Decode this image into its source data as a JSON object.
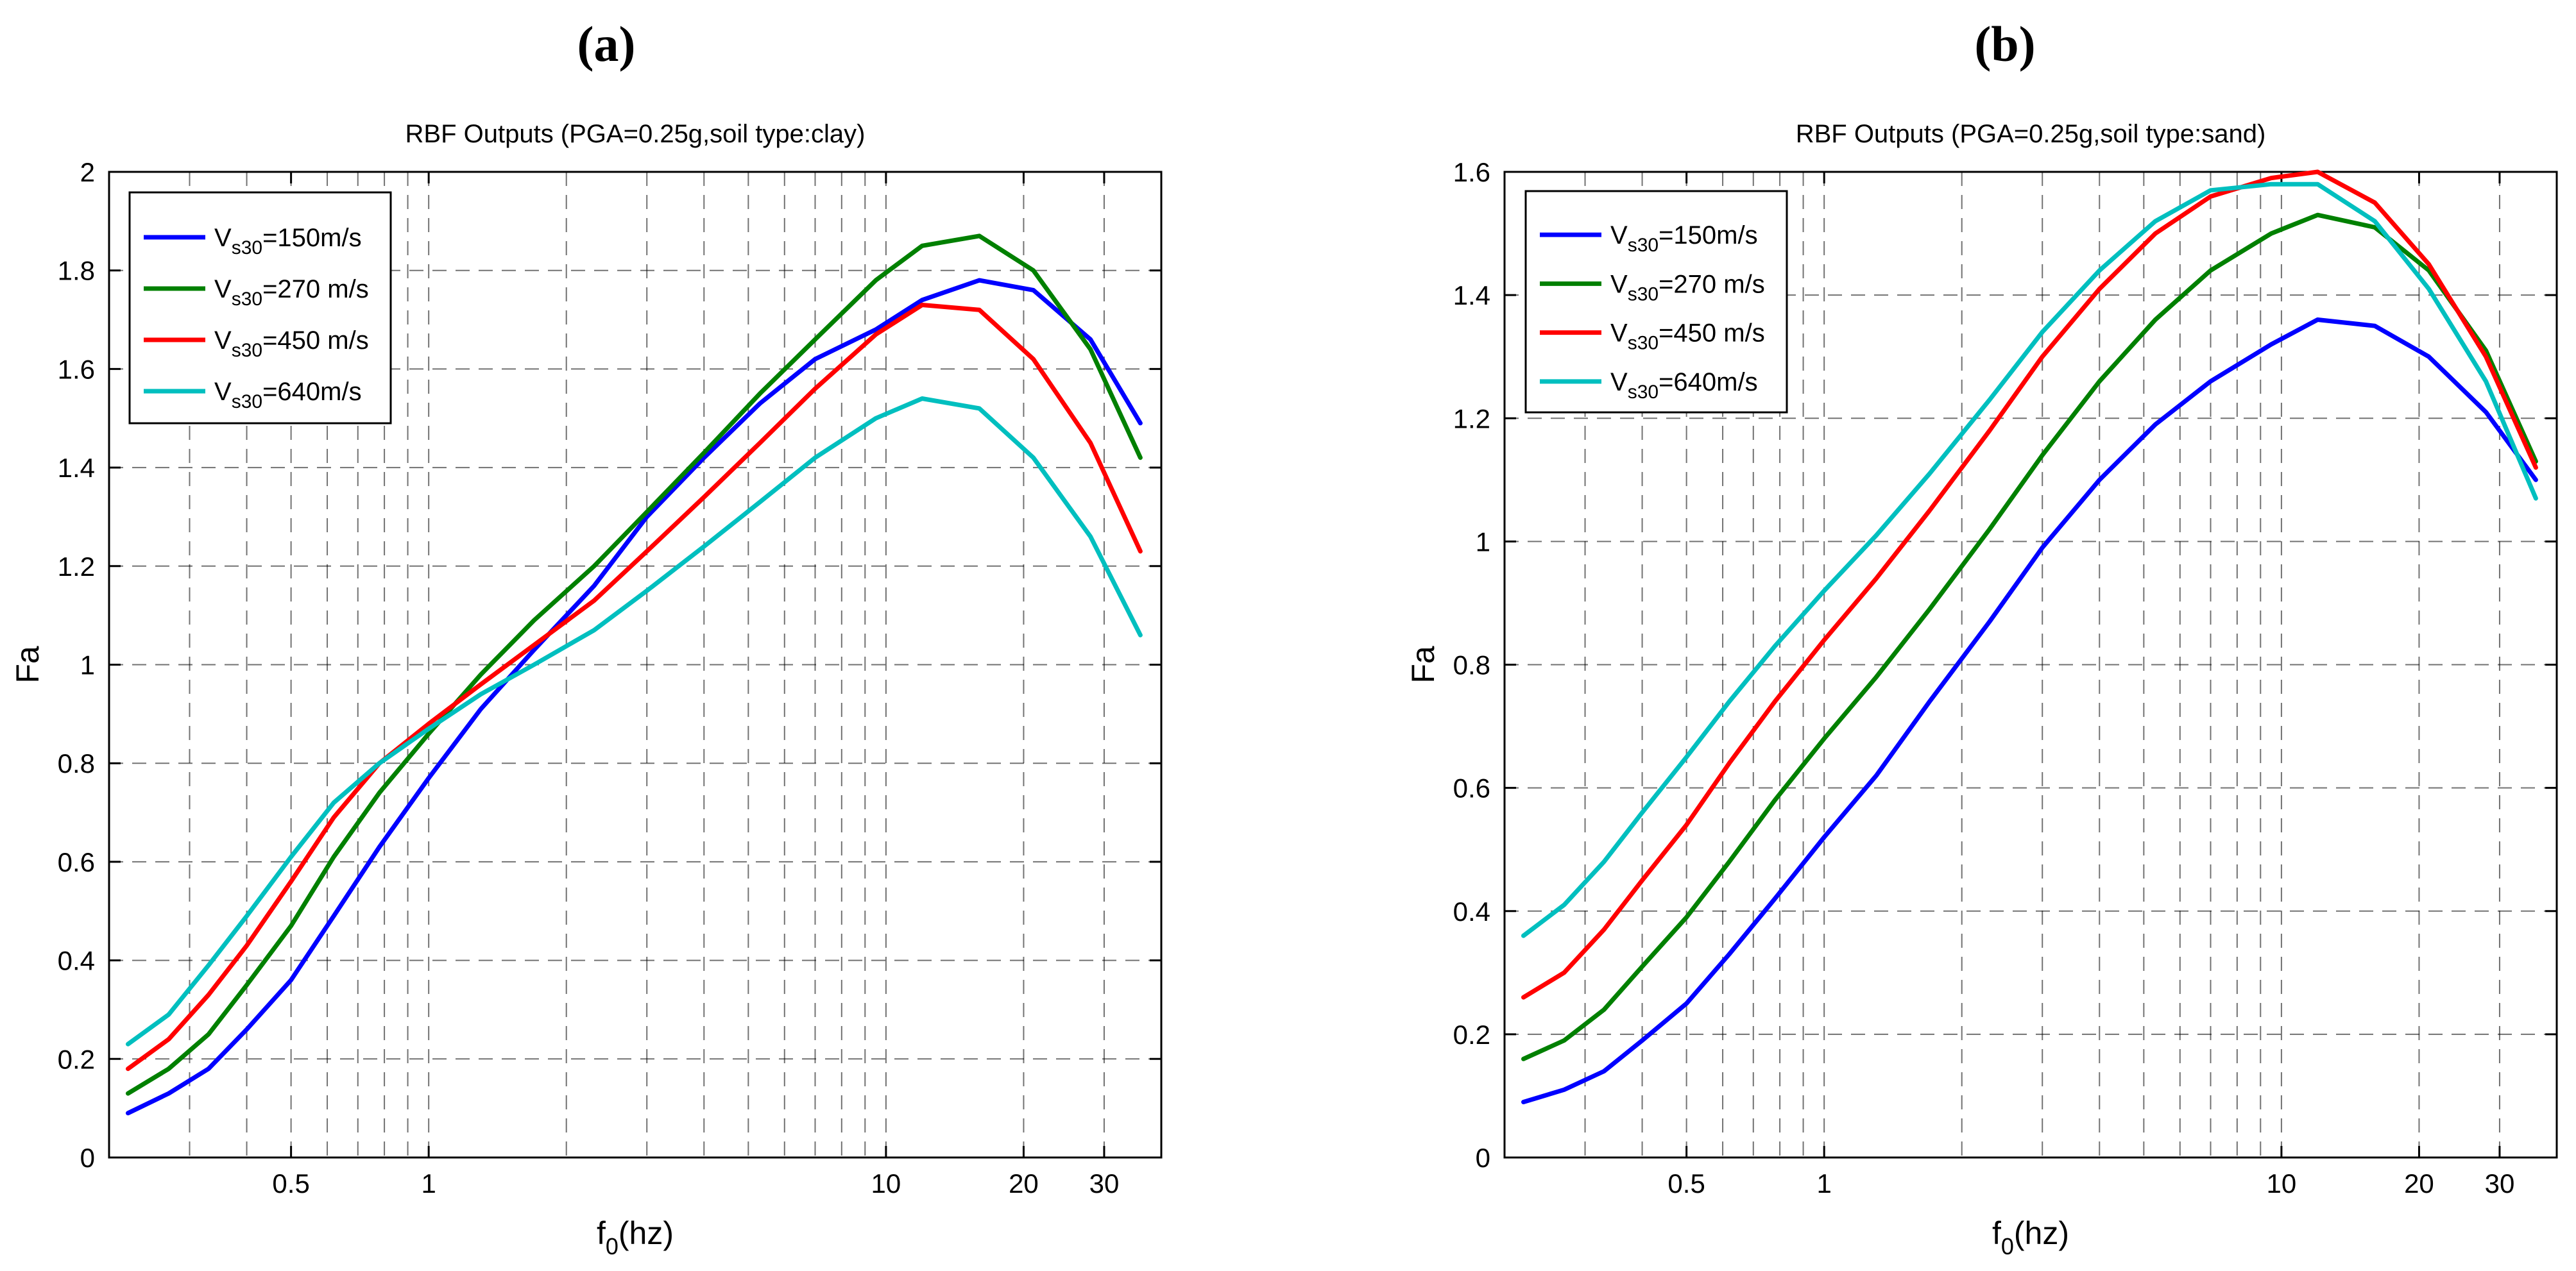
{
  "colors": {
    "series1": "#0000ff",
    "series2": "#008000",
    "series3": "#ff0000",
    "series4": "#00bfbf",
    "grid": "#000000",
    "axis": "#000000",
    "background": "#ffffff"
  },
  "chart_data": [
    {
      "panel_label": "(a)",
      "type": "line",
      "title": "RBF Outputs (PGA=0.25g,soil type:clay)",
      "xlabel": {
        "base": "f",
        "sub": "0",
        "rest": "(hz)"
      },
      "ylabel": "Fa",
      "xscale": "log",
      "xlim": [
        0.2,
        40
      ],
      "ylim": [
        0,
        2
      ],
      "yticks": [
        0,
        0.2,
        0.4,
        0.6,
        0.8,
        1,
        1.2,
        1.4,
        1.6,
        1.8,
        2
      ],
      "ytick_labels": [
        "0",
        "0.2",
        "0.4",
        "0.6",
        "0.8",
        "1",
        "1.2",
        "1.4",
        "1.6",
        "1.8",
        "2"
      ],
      "xtick_values": [
        0.5,
        1,
        10,
        20,
        30
      ],
      "xtick_labels": [
        "0.5",
        "1",
        "10",
        "20",
        "30"
      ],
      "legend_position": "top-left",
      "x": [
        0.22,
        0.27,
        0.33,
        0.4,
        0.5,
        0.62,
        0.78,
        1.0,
        1.3,
        1.7,
        2.3,
        3.0,
        4.0,
        5.3,
        7.0,
        9.5,
        12.0,
        16.0,
        21.0,
        28.0,
        36.0
      ],
      "series": [
        {
          "name_base": "V",
          "name_sub": "s30",
          "name_rest": "=150m/s",
          "color_key": "series1",
          "values": [
            0.09,
            0.13,
            0.18,
            0.26,
            0.36,
            0.49,
            0.63,
            0.77,
            0.91,
            1.03,
            1.16,
            1.3,
            1.42,
            1.53,
            1.62,
            1.68,
            1.74,
            1.78,
            1.76,
            1.66,
            1.49
          ]
        },
        {
          "name_base": "V",
          "name_sub": "s30",
          "name_rest": "=270 m/s",
          "color_key": "series2",
          "values": [
            0.13,
            0.18,
            0.25,
            0.35,
            0.47,
            0.61,
            0.74,
            0.86,
            0.98,
            1.09,
            1.2,
            1.31,
            1.43,
            1.55,
            1.66,
            1.78,
            1.85,
            1.87,
            1.8,
            1.64,
            1.42
          ]
        },
        {
          "name_base": "V",
          "name_sub": "s30",
          "name_rest": "=450 m/s",
          "color_key": "series3",
          "values": [
            0.18,
            0.24,
            0.33,
            0.43,
            0.56,
            0.69,
            0.8,
            0.88,
            0.96,
            1.04,
            1.13,
            1.23,
            1.34,
            1.45,
            1.56,
            1.67,
            1.73,
            1.72,
            1.62,
            1.45,
            1.23
          ]
        },
        {
          "name_base": "V",
          "name_sub": "s30",
          "name_rest": "=640m/s",
          "color_key": "series4",
          "values": [
            0.23,
            0.29,
            0.39,
            0.49,
            0.61,
            0.72,
            0.8,
            0.87,
            0.94,
            1.0,
            1.07,
            1.15,
            1.24,
            1.33,
            1.42,
            1.5,
            1.54,
            1.52,
            1.42,
            1.26,
            1.06
          ]
        }
      ]
    },
    {
      "panel_label": "(b)",
      "type": "line",
      "title": "RBF Outputs (PGA=0.25g,soil type:sand)",
      "xlabel": {
        "base": "f",
        "sub": "0",
        "rest": "(hz)"
      },
      "ylabel": "Fa",
      "xscale": "log",
      "xlim": [
        0.2,
        40
      ],
      "ylim": [
        0,
        1.6
      ],
      "yticks": [
        0,
        0.2,
        0.4,
        0.6,
        0.8,
        1,
        1.2,
        1.4,
        1.6
      ],
      "ytick_labels": [
        "0",
        "0.2",
        "0.4",
        "0.6",
        "0.8",
        "1",
        "1.2",
        "1.4",
        "1.6"
      ],
      "xtick_values": [
        0.5,
        1,
        10,
        20,
        30
      ],
      "xtick_labels": [
        "0.5",
        "1",
        "10",
        "20",
        "30"
      ],
      "legend_position": "top-left",
      "x": [
        0.22,
        0.27,
        0.33,
        0.4,
        0.5,
        0.62,
        0.78,
        1.0,
        1.3,
        1.7,
        2.3,
        3.0,
        4.0,
        5.3,
        7.0,
        9.5,
        12.0,
        16.0,
        21.0,
        28.0,
        36.0
      ],
      "series": [
        {
          "name_base": "V",
          "name_sub": "s30",
          "name_rest": "=150m/s",
          "color_key": "series1",
          "values": [
            0.09,
            0.11,
            0.14,
            0.19,
            0.25,
            0.33,
            0.42,
            0.52,
            0.62,
            0.74,
            0.87,
            0.99,
            1.1,
            1.19,
            1.26,
            1.32,
            1.36,
            1.35,
            1.3,
            1.21,
            1.1
          ]
        },
        {
          "name_base": "V",
          "name_sub": "s30",
          "name_rest": "=270 m/s",
          "color_key": "series2",
          "values": [
            0.16,
            0.19,
            0.24,
            0.31,
            0.39,
            0.48,
            0.58,
            0.68,
            0.78,
            0.89,
            1.02,
            1.14,
            1.26,
            1.36,
            1.44,
            1.5,
            1.53,
            1.51,
            1.44,
            1.31,
            1.13
          ]
        },
        {
          "name_base": "V",
          "name_sub": "s30",
          "name_rest": "=450 m/s",
          "color_key": "series3",
          "values": [
            0.26,
            0.3,
            0.37,
            0.45,
            0.54,
            0.64,
            0.74,
            0.84,
            0.94,
            1.05,
            1.18,
            1.3,
            1.41,
            1.5,
            1.56,
            1.59,
            1.6,
            1.55,
            1.45,
            1.3,
            1.12
          ]
        },
        {
          "name_base": "V",
          "name_sub": "s30",
          "name_rest": "=640m/s",
          "color_key": "series4",
          "values": [
            0.36,
            0.41,
            0.48,
            0.56,
            0.65,
            0.74,
            0.83,
            0.92,
            1.01,
            1.11,
            1.23,
            1.34,
            1.44,
            1.52,
            1.57,
            1.58,
            1.58,
            1.52,
            1.41,
            1.26,
            1.07
          ]
        }
      ]
    }
  ]
}
